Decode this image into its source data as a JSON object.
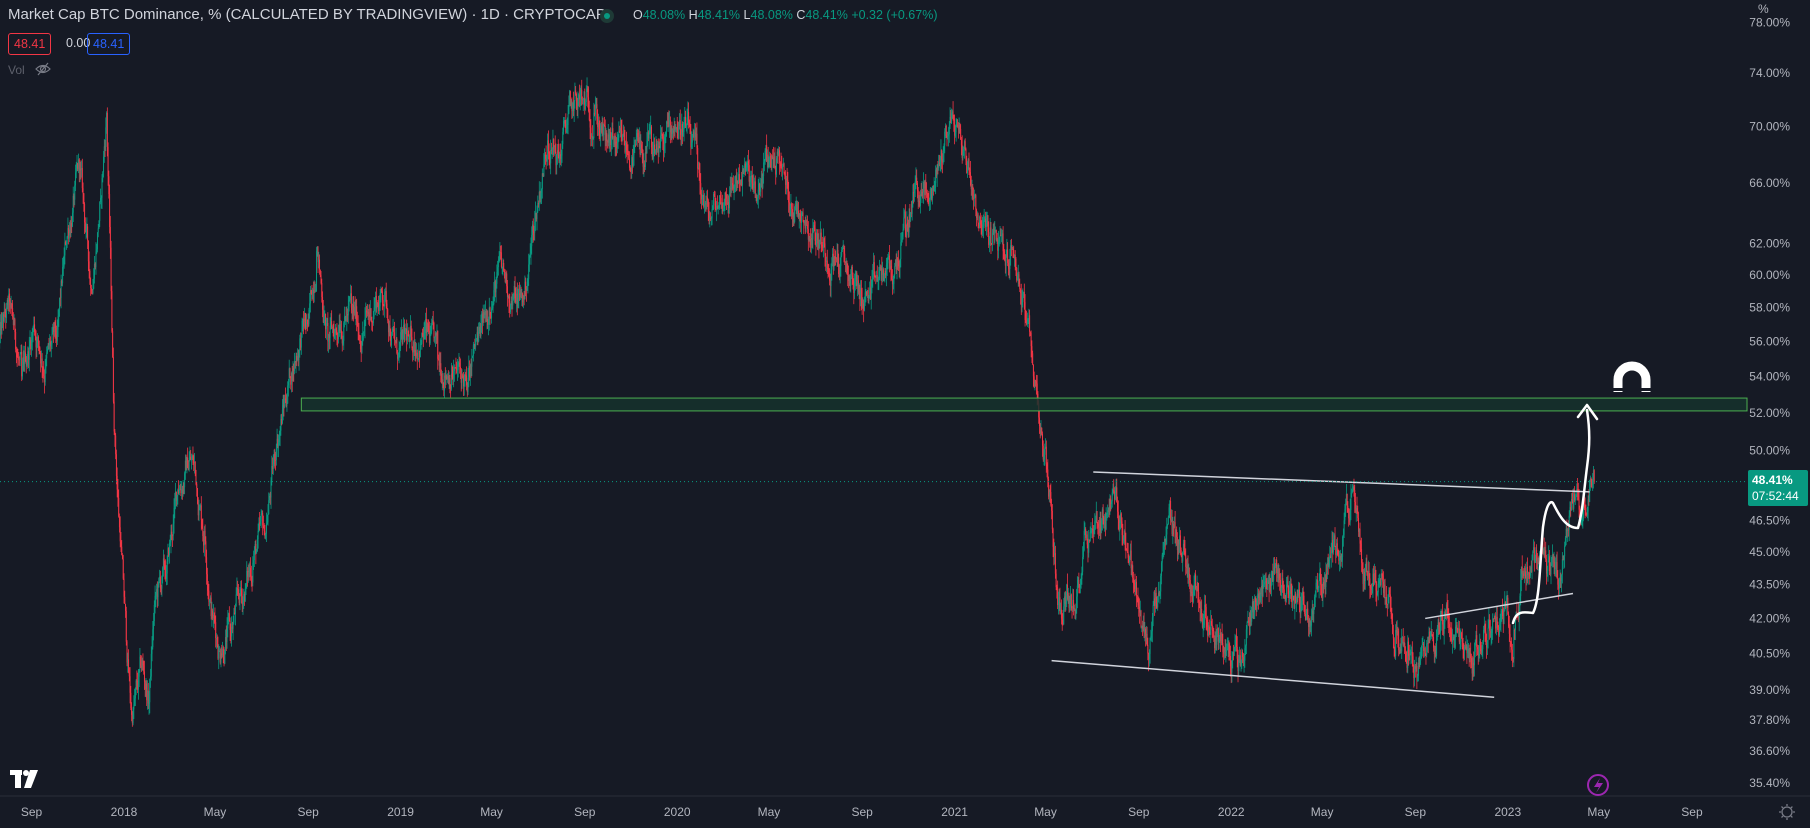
{
  "header": {
    "title": "Market Cap BTC Dominance, % (CALCULATED BY TRADINGVIEW) · 1D · CRYPTOCAP",
    "ohlc": {
      "o_label": "O",
      "o": "48.08%",
      "h_label": "H",
      "h": "48.41%",
      "l_label": "L",
      "l": "48.08%",
      "c_label": "C",
      "c": "48.41%",
      "change": "+0.32 (+0.67%)"
    },
    "price_box_red": "48.41",
    "price_box_spread": "0.00",
    "price_box_blue": "48.41",
    "volume_label": "Vol"
  },
  "price_axis": {
    "unit": "%",
    "current_price": "48.41%",
    "countdown": "07:52:44"
  },
  "colors": {
    "background": "#161a25",
    "up": "#089981",
    "down": "#f23645",
    "zone_border": "#4caf50",
    "zone_fill": "#15332d",
    "annotation": "#ffffff",
    "accent": "#9c27b0"
  },
  "icons": [
    "tradingview-logo-icon",
    "eye-slash-icon",
    "magnet-icon",
    "lightning-icon",
    "settings-icon"
  ],
  "chart_data": {
    "type": "candlestick",
    "title": "Market Cap BTC Dominance, % (CALCULATED BY TRADINGVIEW) · 1D · CRYPTOCAP",
    "interval": "1D",
    "yscale": "log",
    "ylim": [
      35.0,
      79.8
    ],
    "xlim": [
      "2017-07-20",
      "2023-11-14"
    ],
    "grid": false,
    "yticks": [
      "78.00%",
      "74.00%",
      "70.00%",
      "66.00%",
      "62.00%",
      "60.00%",
      "58.00%",
      "56.00%",
      "54.00%",
      "52.00%",
      "50.00%",
      "46.50%",
      "45.00%",
      "43.50%",
      "42.00%",
      "40.50%",
      "39.00%",
      "37.80%",
      "36.60%",
      "35.40%"
    ],
    "ytick_values": [
      78,
      74,
      70,
      66,
      62,
      60,
      58,
      56,
      54,
      52,
      50,
      46.5,
      45,
      43.5,
      42,
      40.5,
      39,
      37.8,
      36.6,
      35.4
    ],
    "xticks": [
      {
        "label": "Sep",
        "date": "2017-09-01"
      },
      {
        "label": "2018",
        "date": "2018-01-01"
      },
      {
        "label": "May",
        "date": "2018-05-01"
      },
      {
        "label": "Sep",
        "date": "2018-09-01"
      },
      {
        "label": "2019",
        "date": "2019-01-01"
      },
      {
        "label": "May",
        "date": "2019-05-01"
      },
      {
        "label": "Sep",
        "date": "2019-09-01"
      },
      {
        "label": "2020",
        "date": "2020-01-01"
      },
      {
        "label": "May",
        "date": "2020-05-01"
      },
      {
        "label": "Sep",
        "date": "2020-09-01"
      },
      {
        "label": "2021",
        "date": "2021-01-01"
      },
      {
        "label": "May",
        "date": "2021-05-01"
      },
      {
        "label": "Sep",
        "date": "2021-09-01"
      },
      {
        "label": "2022",
        "date": "2022-01-01"
      },
      {
        "label": "May",
        "date": "2022-05-01"
      },
      {
        "label": "Sep",
        "date": "2022-09-01"
      },
      {
        "label": "2023",
        "date": "2023-01-01"
      },
      {
        "label": "May",
        "date": "2023-05-01"
      },
      {
        "label": "Sep",
        "date": "2023-09-01"
      }
    ],
    "close_points": [
      [
        "2017-07-20",
        56
      ],
      [
        "2017-08-04",
        58
      ],
      [
        "2017-08-19",
        54
      ],
      [
        "2017-09-04",
        57
      ],
      [
        "2017-09-19",
        54.5
      ],
      [
        "2017-10-04",
        56
      ],
      [
        "2017-10-19",
        63
      ],
      [
        "2017-11-04",
        67
      ],
      [
        "2017-11-19",
        59
      ],
      [
        "2017-12-01",
        65
      ],
      [
        "2017-12-09",
        71
      ],
      [
        "2017-12-15",
        59
      ],
      [
        "2017-12-19",
        51
      ],
      [
        "2017-12-27",
        45.5
      ],
      [
        "2018-01-04",
        41
      ],
      [
        "2018-01-11",
        38
      ],
      [
        "2018-01-19",
        39
      ],
      [
        "2018-01-26",
        40
      ],
      [
        "2018-02-03",
        38.5
      ],
      [
        "2018-02-11",
        43
      ],
      [
        "2018-02-26",
        44
      ],
      [
        "2018-03-13",
        48
      ],
      [
        "2018-03-28",
        49.5
      ],
      [
        "2018-04-05",
        49
      ],
      [
        "2018-04-17",
        46
      ],
      [
        "2018-04-28",
        42
      ],
      [
        "2018-05-09",
        40.5
      ],
      [
        "2018-05-21",
        41.5
      ],
      [
        "2018-06-05",
        43
      ],
      [
        "2018-06-20",
        44.5
      ],
      [
        "2018-07-05",
        46
      ],
      [
        "2018-07-21",
        50
      ],
      [
        "2018-08-05",
        53.5
      ],
      [
        "2018-08-23",
        56.5
      ],
      [
        "2018-09-01",
        57
      ],
      [
        "2018-09-12",
        61.5
      ],
      [
        "2018-09-27",
        56
      ],
      [
        "2018-10-12",
        57
      ],
      [
        "2018-10-28",
        58
      ],
      [
        "2018-11-12",
        56.5
      ],
      [
        "2018-11-27",
        58
      ],
      [
        "2018-12-12",
        59
      ],
      [
        "2018-12-28",
        55
      ],
      [
        "2019-01-12",
        56
      ],
      [
        "2019-02-04",
        56.5
      ],
      [
        "2019-02-19",
        55
      ],
      [
        "2019-03-14",
        54.5
      ],
      [
        "2019-03-29",
        53.5
      ],
      [
        "2019-04-13",
        56
      ],
      [
        "2019-04-28",
        58
      ],
      [
        "2019-05-14",
        60.5
      ],
      [
        "2019-05-29",
        58.5
      ],
      [
        "2019-06-13",
        58.5
      ],
      [
        "2019-06-28",
        64
      ],
      [
        "2019-07-14",
        69
      ],
      [
        "2019-07-29",
        67.5
      ],
      [
        "2019-08-13",
        71.5
      ],
      [
        "2019-08-28",
        72
      ],
      [
        "2019-09-13",
        71
      ],
      [
        "2019-09-28",
        69
      ],
      [
        "2019-10-13",
        68.5
      ],
      [
        "2019-10-28",
        68
      ],
      [
        "2019-11-13",
        68
      ],
      [
        "2019-11-28",
        68.5
      ],
      [
        "2019-12-13",
        69
      ],
      [
        "2019-12-28",
        70
      ],
      [
        "2020-01-12",
        70
      ],
      [
        "2020-01-28",
        67
      ],
      [
        "2020-02-12",
        63.5
      ],
      [
        "2020-02-27",
        65
      ],
      [
        "2020-03-13",
        66
      ],
      [
        "2020-03-29",
        67
      ],
      [
        "2020-04-13",
        65
      ],
      [
        "2020-04-28",
        67.5
      ],
      [
        "2020-05-13",
        68
      ],
      [
        "2020-05-29",
        64.5
      ],
      [
        "2020-06-13",
        64
      ],
      [
        "2020-06-28",
        63
      ],
      [
        "2020-07-13",
        62
      ],
      [
        "2020-07-29",
        61
      ],
      [
        "2020-08-13",
        60
      ],
      [
        "2020-08-28",
        59
      ],
      [
        "2020-09-12",
        58.5
      ],
      [
        "2020-09-27",
        60
      ],
      [
        "2020-10-13",
        60
      ],
      [
        "2020-10-28",
        63
      ],
      [
        "2020-11-12",
        66
      ],
      [
        "2020-11-27",
        65
      ],
      [
        "2020-12-13",
        67.5
      ],
      [
        "2020-12-28",
        71
      ],
      [
        "2021-01-05",
        70
      ],
      [
        "2021-01-20",
        67
      ],
      [
        "2021-02-04",
        63.5
      ],
      [
        "2021-02-19",
        62
      ],
      [
        "2021-03-06",
        61.5
      ],
      [
        "2021-03-22",
        61
      ],
      [
        "2021-04-06",
        57
      ],
      [
        "2021-04-21",
        52.5
      ],
      [
        "2021-05-06",
        48
      ],
      [
        "2021-05-14",
        44
      ],
      [
        "2021-05-22",
        42
      ],
      [
        "2021-05-29",
        43.5
      ],
      [
        "2021-06-09",
        42
      ],
      [
        "2021-06-21",
        46
      ],
      [
        "2021-07-06",
        46.5
      ],
      [
        "2021-07-22",
        47
      ],
      [
        "2021-07-29",
        48
      ],
      [
        "2021-08-13",
        46
      ],
      [
        "2021-08-29",
        43
      ],
      [
        "2021-09-13",
        40.5
      ],
      [
        "2021-09-28",
        43
      ],
      [
        "2021-10-13",
        46.5
      ],
      [
        "2021-10-29",
        45
      ],
      [
        "2021-11-13",
        43.5
      ],
      [
        "2021-11-28",
        42.5
      ],
      [
        "2021-12-13",
        41.5
      ],
      [
        "2021-12-29",
        40.5
      ],
      [
        "2022-01-13",
        40
      ],
      [
        "2022-01-28",
        42.5
      ],
      [
        "2022-02-12",
        43.5
      ],
      [
        "2022-02-27",
        44
      ],
      [
        "2022-03-15",
        43.5
      ],
      [
        "2022-03-30",
        43
      ],
      [
        "2022-04-14",
        42
      ],
      [
        "2022-04-29",
        43.5
      ],
      [
        "2022-05-15",
        45
      ],
      [
        "2022-05-30",
        46.5
      ],
      [
        "2022-06-10",
        48
      ],
      [
        "2022-06-22",
        44.5
      ],
      [
        "2022-07-07",
        44
      ],
      [
        "2022-07-22",
        43.5
      ],
      [
        "2022-08-06",
        41.5
      ],
      [
        "2022-08-22",
        41
      ],
      [
        "2022-09-03",
        39.5
      ],
      [
        "2022-09-14",
        40.5
      ],
      [
        "2022-09-29",
        41.5
      ],
      [
        "2022-10-14",
        42
      ],
      [
        "2022-10-29",
        41
      ],
      [
        "2022-11-13",
        40.3
      ],
      [
        "2022-11-29",
        41
      ],
      [
        "2022-12-14",
        42
      ],
      [
        "2022-12-29",
        42.5
      ],
      [
        "2023-01-09",
        41.5
      ],
      [
        "2023-01-21",
        44
      ],
      [
        "2023-02-05",
        44.5
      ],
      [
        "2023-02-21",
        44
      ],
      [
        "2023-03-08",
        43.5
      ],
      [
        "2023-03-20",
        46
      ],
      [
        "2023-03-31",
        47.5
      ],
      [
        "2023-04-10",
        47
      ],
      [
        "2023-04-19",
        48.5
      ],
      [
        "2023-04-25",
        48.41
      ]
    ],
    "annotations": {
      "zone": {
        "low": 52.1,
        "high": 52.8,
        "start": "2018-08-23"
      },
      "trendlines": [
        {
          "start": [
            "2021-07-03",
            48.9
          ],
          "end": [
            "2023-04-19",
            47.9
          ]
        },
        {
          "start": [
            "2021-05-09",
            40.2
          ],
          "end": [
            "2022-12-14",
            38.7
          ]
        },
        {
          "start": [
            "2022-09-14",
            42.0
          ],
          "end": [
            "2023-03-28",
            43.1
          ]
        }
      ],
      "current_price_line": 48.41
    }
  }
}
